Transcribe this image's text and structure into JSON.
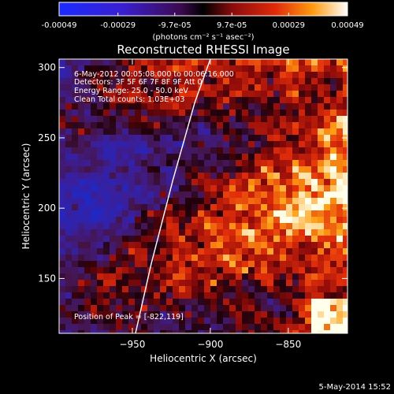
{
  "colorbar": {
    "ticks": [
      "-0.00049",
      "-0.00029",
      "-9.7e-05",
      "9.7e-05",
      "0.00029",
      "0.00049"
    ],
    "values": [
      -0.00049,
      -0.00029,
      -9.7e-05,
      9.7e-05,
      0.00029,
      0.00049
    ],
    "unit_label": "(photons cm⁻² s⁻¹ asec⁻²)",
    "range": [
      -0.00049,
      0.00049
    ]
  },
  "chart_data": {
    "type": "heatmap",
    "title": "Reconstructed RHESSI Image",
    "xlabel": "Heliocentric X (arcsec)",
    "ylabel": "Heliocentric Y (arcsec)",
    "xlim": [
      -997,
      -812
    ],
    "ylim": [
      111,
      306
    ],
    "x_ticks": [
      -950,
      -900,
      -850
    ],
    "x_tick_labels": [
      "−950",
      "−900",
      "−850"
    ],
    "y_ticks": [
      150,
      200,
      250,
      300
    ],
    "y_tick_labels": [
      "150",
      "200",
      "250",
      "300"
    ],
    "grid": false,
    "colormap": "blue-purple-red-yellow-white",
    "limb_line": [
      [
        -948,
        111
      ],
      [
        -938,
        160
      ],
      [
        -924,
        220
      ],
      [
        -910,
        275
      ],
      [
        -900,
        306
      ]
    ],
    "peak_position": [
      -822,
      119
    ],
    "annotations": [
      "6-May-2012 00:05:08.000 to 00:06:16.000",
      "Detectors: 3F 5F 6F 7F 8F 9F  Att 0",
      "Energy Range: 25.0 - 50.0 keV",
      "Clean     Total counts: 1.03E+03",
      "Position of Peak = [-822,119]"
    ]
  },
  "footer": {
    "date": "5-May-2014 15:52"
  }
}
